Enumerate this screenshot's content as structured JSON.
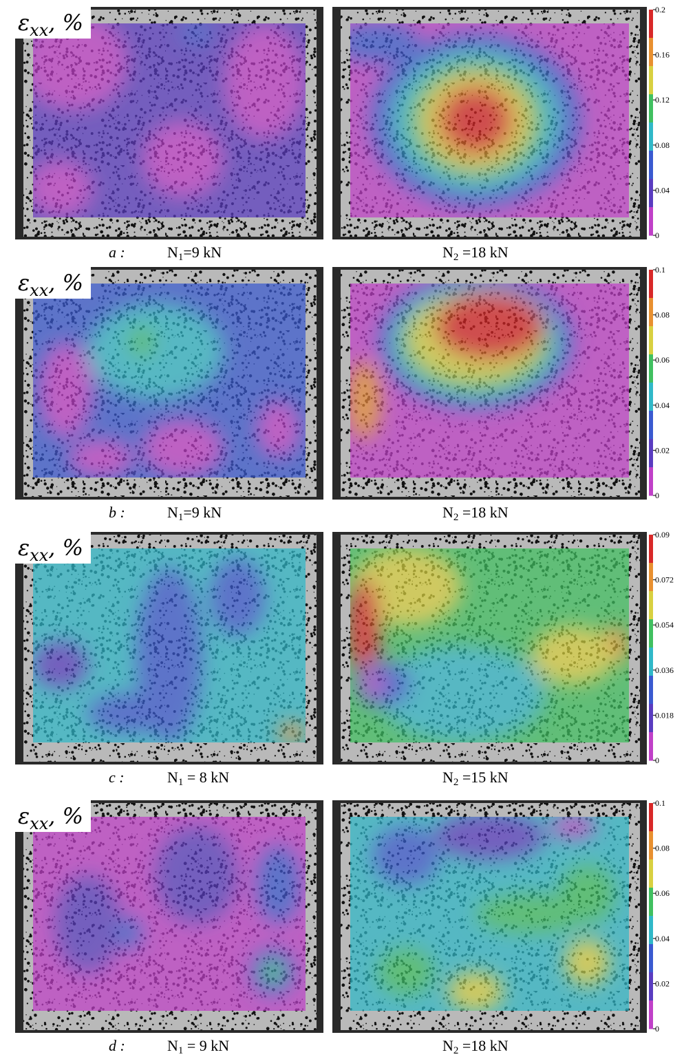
{
  "rows": [
    {
      "symbol": "ε",
      "subscript": "xx",
      "unit": ", %",
      "letter": "a :",
      "left": {
        "n": "N",
        "sub": "1",
        "rest": "=9 kN"
      },
      "right": {
        "n": "N",
        "sub": "2",
        "rest": " =18 kN"
      },
      "colorbar": [
        "0.2",
        "0.16",
        "0.12",
        "0.08",
        "0.04",
        "0"
      ]
    },
    {
      "symbol": "ε",
      "subscript": "xx",
      "unit": ", %",
      "letter": "b :",
      "left": {
        "n": "N",
        "sub": "1",
        "rest": "=9 kN"
      },
      "right": {
        "n": "N",
        "sub": "2",
        "rest": " =18 kN"
      },
      "colorbar": [
        "0.1",
        "0.08",
        "0.06",
        "0.04",
        "0.02",
        "0"
      ]
    },
    {
      "symbol": "ε",
      "subscript": "xx",
      "unit": ", %",
      "letter": "c :",
      "left": {
        "n": "N",
        "sub": "1",
        "rest": " = 8 kN"
      },
      "right": {
        "n": "N",
        "sub": "2",
        "rest": " =15 kN"
      },
      "colorbar": [
        "0.09",
        "0.072",
        "0.054",
        "0.036",
        "0.018",
        "0"
      ]
    },
    {
      "symbol": "ε",
      "subscript": "xx",
      "unit": ", %",
      "letter": "d :",
      "left": {
        "n": "N",
        "sub": "1",
        "rest": " = 9 kN"
      },
      "right": {
        "n": "N",
        "sub": "2",
        "rest": " =18 kN"
      },
      "colorbar": [
        "0.1",
        "0.08",
        "0.06",
        "0.04",
        "0.02",
        "0"
      ]
    }
  ]
}
